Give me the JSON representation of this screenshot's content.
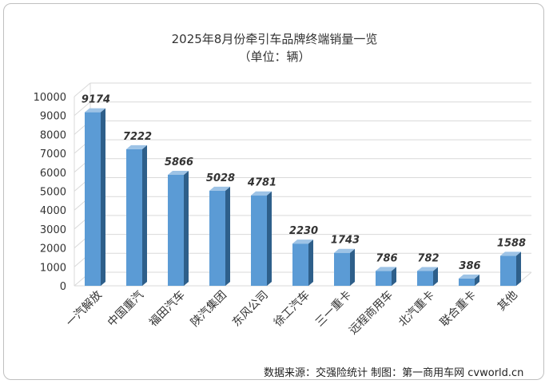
{
  "chart_data": {
    "type": "bar",
    "title": "2025年8月份牵引车品牌终端销量一览",
    "subtitle": "（单位：辆）",
    "categories": [
      "一汽解放",
      "中国重汽",
      "福田汽车",
      "陕汽集团",
      "东风公司",
      "徐工汽车",
      "三一重卡",
      "远程商用车",
      "北汽重卡",
      "联合重卡",
      "其他"
    ],
    "values": [
      9174,
      7222,
      5866,
      5028,
      4781,
      2230,
      1743,
      786,
      782,
      386,
      1588
    ],
    "ylim": [
      0,
      10000
    ],
    "yticks": [
      0,
      1000,
      2000,
      3000,
      4000,
      5000,
      6000,
      7000,
      8000,
      9000,
      10000
    ],
    "xlabel": "",
    "ylabel": "",
    "grid": true,
    "bar_color": "#5b9bd5",
    "bar_side_color": "#2e5f8a",
    "bar_top_color": "#9dc3e6"
  },
  "source_note": "数据来源：交强险统计  制图：第一商用车网 cvworld.cn"
}
